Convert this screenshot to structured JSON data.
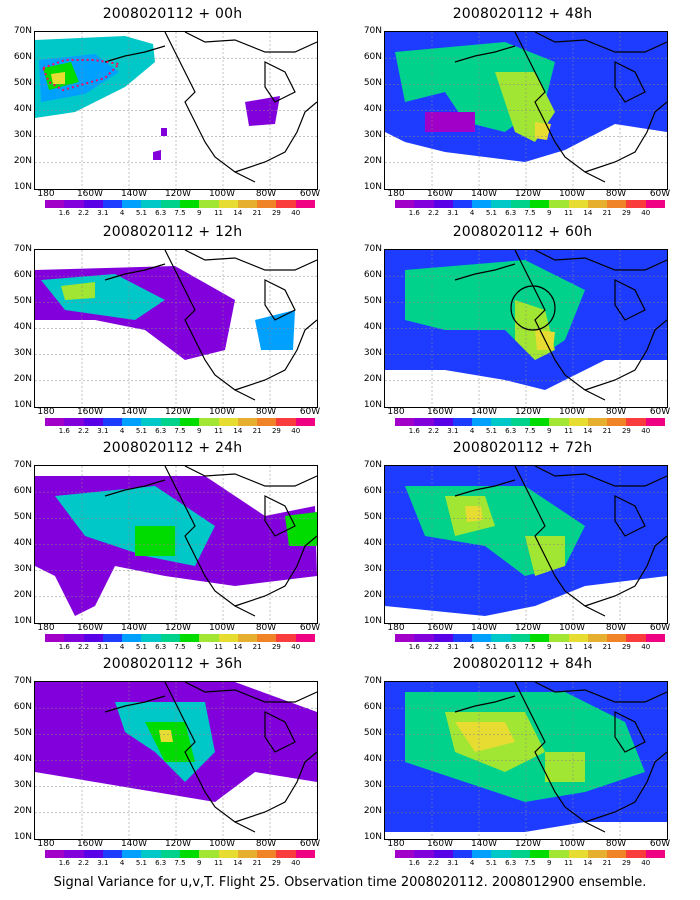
{
  "caption": "Signal Variance for u,v,T. Flight 25. Observation time 2008020112. 2008012900 ensemble.",
  "lat_labels": [
    "70N",
    "60N",
    "50N",
    "40N",
    "30N",
    "20N",
    "10N"
  ],
  "lon_labels": [
    "180",
    "160W",
    "140W",
    "120W",
    "100W",
    "80W",
    "60W"
  ],
  "colorbar": {
    "labels": [
      "1.6",
      "2.2",
      "3.1",
      "4",
      "5.1",
      "6.3",
      "7.5",
      "9",
      "11",
      "14",
      "21",
      "29",
      "40"
    ],
    "colors": [
      "#a000c8",
      "#8200dc",
      "#5a00e6",
      "#1e3cff",
      "#00a0ff",
      "#00c8c8",
      "#00d28c",
      "#00dc00",
      "#a0e632",
      "#e6dc32",
      "#e6af2d",
      "#f08228",
      "#fa3c3c",
      "#f00082"
    ]
  },
  "panels": [
    {
      "title": "2008020112 + 00h",
      "hours": 0
    },
    {
      "title": "2008020112 + 48h",
      "hours": 48
    },
    {
      "title": "2008020112 + 12h",
      "hours": 12
    },
    {
      "title": "2008020112 + 60h",
      "hours": 60
    },
    {
      "title": "2008020112 + 24h",
      "hours": 24
    },
    {
      "title": "2008020112 + 72h",
      "hours": 72
    },
    {
      "title": "2008020112 + 36h",
      "hours": 36
    },
    {
      "title": "2008020112 + 84h",
      "hours": 84
    }
  ]
}
